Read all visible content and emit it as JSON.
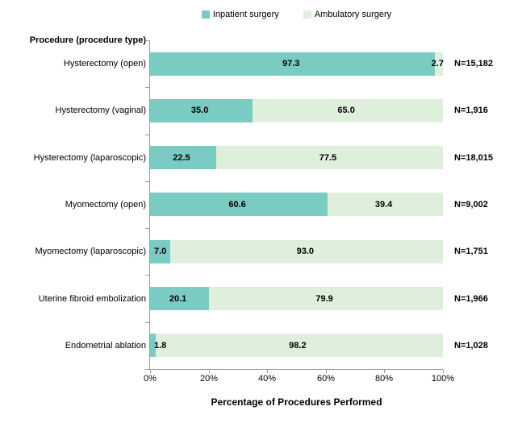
{
  "chart_data": {
    "type": "bar",
    "orientation": "horizontal",
    "stacked": true,
    "axis_header": "Procedure (procedure type)",
    "xlabel": "Percentage of Procedures Performed",
    "xlim": [
      0,
      100
    ],
    "x_ticks": [
      "0%",
      "20%",
      "40%",
      "60%",
      "80%",
      "100%"
    ],
    "grid": false,
    "legend_position": "top-center",
    "legend": [
      {
        "label": "Inpatient surgery",
        "color": "#7ACCC2"
      },
      {
        "label": "Ambulatory surgery",
        "color": "#DEF0DC"
      }
    ],
    "categories": [
      "Hysterectomy (open)",
      "Hysterectomy (vaginal)",
      "Hysterectomy (laparoscopic)",
      "Myomectomy (open)",
      "Myomectomy (laparoscopic)",
      "Uterine fibroid embolization",
      "Endometrial ablation"
    ],
    "series": [
      {
        "name": "Inpatient surgery",
        "values": [
          97.3,
          35.0,
          22.5,
          60.6,
          7.0,
          20.1,
          1.8
        ]
      },
      {
        "name": "Ambulatory surgery",
        "values": [
          2.7,
          65.0,
          77.5,
          39.4,
          93.0,
          79.9,
          98.2
        ]
      }
    ],
    "n_labels": [
      "N=15,182",
      "N=1,916",
      "N=18,015",
      "N=9,002",
      "N=1,751",
      "N=1,966",
      "N=1,028"
    ]
  },
  "colors": {
    "inpatient": "#7ACCC2",
    "ambulatory": "#DEF0DC",
    "axis": "#9A9A9A",
    "text": "#000000",
    "background": "#FFFFFF"
  }
}
